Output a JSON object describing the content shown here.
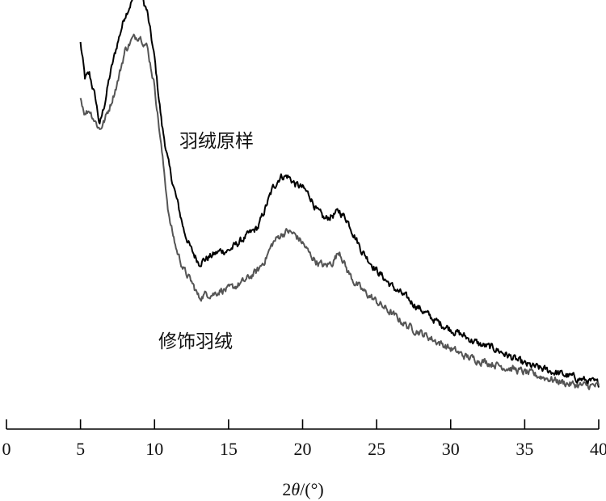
{
  "chart_data": {
    "type": "line",
    "xlabel_parts": [
      "2",
      "θ",
      "/(°)"
    ],
    "xlim": [
      0,
      40
    ],
    "x_ticks": [
      0,
      5,
      10,
      15,
      20,
      25,
      30,
      35,
      40
    ],
    "y_axis_shown": false,
    "grid": false,
    "legend": "none",
    "series": [
      {
        "name": "羽绒原样",
        "color": "#000000",
        "x": [
          5,
          5.3,
          5.6,
          6,
          6.3,
          6.6,
          7,
          7.5,
          8,
          8.5,
          9,
          9.5,
          10,
          10.5,
          11,
          11.5,
          12,
          12.5,
          13,
          13.5,
          14,
          14.5,
          15,
          16,
          17,
          17.5,
          18,
          18.5,
          19,
          19.5,
          20,
          20.5,
          21,
          21.5,
          22,
          22.5,
          23,
          23.5,
          24,
          25,
          26,
          27,
          28,
          29,
          30,
          31,
          32,
          33,
          34,
          35,
          36,
          37,
          38,
          39,
          40
        ],
        "y": [
          88,
          79,
          80,
          74,
          67,
          72,
          80,
          88,
          95,
          99,
          101,
          96,
          84,
          67,
          56,
          48,
          40,
          35,
          32,
          33,
          34,
          35,
          35,
          38,
          41,
          46,
          51,
          54,
          54,
          52,
          51,
          49,
          45,
          43,
          44,
          45,
          43,
          39,
          35,
          30,
          26,
          23,
          20,
          17,
          15,
          13,
          11,
          10,
          8,
          6,
          5,
          4,
          3,
          2,
          1
        ]
      },
      {
        "name": "修饰羽绒",
        "color": "#555555",
        "x": [
          5,
          5.3,
          5.6,
          6,
          6.3,
          6.6,
          7,
          7.5,
          8,
          8.5,
          9,
          9.5,
          10,
          10.5,
          11,
          11.5,
          12,
          12.5,
          13,
          13.5,
          14,
          14.5,
          15,
          16,
          17,
          17.5,
          18,
          18.5,
          19,
          19.5,
          20,
          20.5,
          21,
          21.5,
          22,
          22.5,
          23,
          23.5,
          24,
          25,
          26,
          27,
          28,
          29,
          30,
          31,
          32,
          33,
          34,
          35,
          36,
          37,
          38,
          39,
          40
        ],
        "y": [
          74,
          70,
          71,
          68,
          66,
          68,
          72,
          78,
          86,
          89,
          90,
          87,
          77,
          60,
          43,
          35,
          30,
          27,
          23,
          24,
          24,
          25,
          25,
          27,
          30,
          33,
          37,
          39,
          40,
          39,
          37,
          34,
          32,
          31,
          32,
          35,
          30,
          27,
          25,
          22,
          19,
          16,
          14,
          12,
          10,
          8,
          7,
          6,
          5,
          4,
          3,
          2,
          1,
          0.5,
          0.5
        ]
      }
    ],
    "annotations": [
      "羽绒原样",
      "修饰羽绒"
    ]
  }
}
